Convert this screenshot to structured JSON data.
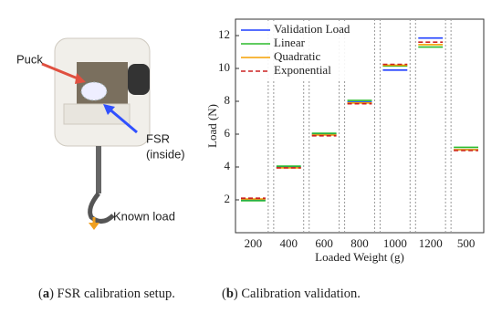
{
  "panel_a": {
    "puck_label": "Puck",
    "fsr_label": [
      "FSR",
      "(inside)"
    ],
    "load_label": "Known load"
  },
  "captions": [
    [
      "(",
      "a",
      ") FSR calibration setup."
    ],
    [
      "(",
      "b",
      ") Calibration validation."
    ]
  ],
  "chart_data": {
    "type": "step-line",
    "x_label": "Loaded Weight (g)",
    "y_label": "Load (N)",
    "categories": [
      "200",
      "400",
      "600",
      "800",
      "1000",
      "1200",
      "500"
    ],
    "ylim": [
      0,
      13
    ],
    "yticks": [
      2,
      4,
      6,
      8,
      10,
      12
    ],
    "legend": "top-left",
    "series": [
      {
        "name": "Validation Load",
        "color": "#1f3fff",
        "line_style": "solid",
        "values": [
          2.0,
          4.0,
          6.0,
          7.95,
          9.9,
          11.85,
          5.05
        ]
      },
      {
        "name": "Linear",
        "color": "#2bbb2b",
        "line_style": "solid",
        "values": [
          1.95,
          4.05,
          6.05,
          8.05,
          10.15,
          11.3,
          5.2
        ]
      },
      {
        "name": "Quadratic",
        "color": "#f5a000",
        "line_style": "solid",
        "values": [
          2.05,
          3.95,
          5.95,
          7.9,
          10.2,
          11.45,
          5.05
        ]
      },
      {
        "name": "Exponential",
        "color": "#cc2222",
        "line_style": "dashed",
        "values": [
          2.1,
          3.95,
          5.9,
          7.85,
          10.25,
          11.6,
          5.0
        ]
      }
    ]
  }
}
